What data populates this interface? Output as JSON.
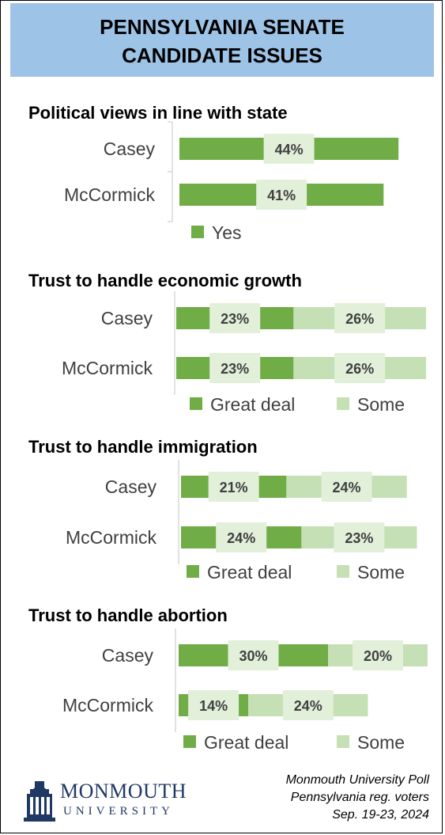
{
  "header": {
    "title_line1": "PENNSYLVANIA SENATE",
    "title_line2": "CANDIDATE ISSUES"
  },
  "colors": {
    "great_deal": "#70ad47",
    "some": "#c5e0b4",
    "yes": "#70ad47",
    "header_bg": "#9dc3e6",
    "label_box": "#e2efd9"
  },
  "chart_data": [
    {
      "type": "bar",
      "orientation": "horizontal",
      "stacked": false,
      "title": "Political views in line with state",
      "categories": [
        "Casey",
        "McCormick"
      ],
      "series": [
        {
          "name": "Yes",
          "values": [
            44,
            41
          ]
        }
      ]
    },
    {
      "type": "bar",
      "orientation": "horizontal",
      "stacked": true,
      "title": "Trust to handle economic growth",
      "categories": [
        "Casey",
        "McCormick"
      ],
      "series": [
        {
          "name": "Great deal",
          "values": [
            23,
            23
          ]
        },
        {
          "name": "Some",
          "values": [
            26,
            26
          ]
        }
      ]
    },
    {
      "type": "bar",
      "orientation": "horizontal",
      "stacked": true,
      "title": "Trust to handle immigration",
      "categories": [
        "Casey",
        "McCormick"
      ],
      "series": [
        {
          "name": "Great deal",
          "values": [
            21,
            24
          ]
        },
        {
          "name": "Some",
          "values": [
            24,
            23
          ]
        }
      ]
    },
    {
      "type": "bar",
      "orientation": "horizontal",
      "stacked": true,
      "title": "Trust to handle abortion",
      "categories": [
        "Casey",
        "McCormick"
      ],
      "series": [
        {
          "name": "Great deal",
          "values": [
            30,
            14
          ]
        },
        {
          "name": "Some",
          "values": [
            20,
            24
          ]
        }
      ]
    }
  ],
  "source": {
    "line1": "Monmouth University Poll",
    "line2": "Pennsylvania reg. voters",
    "line3": "Sep. 19-23, 2024"
  },
  "logo": {
    "name": "MONMOUTH",
    "sub": "UNIVERSITY",
    "icon": "university-tower-icon"
  }
}
